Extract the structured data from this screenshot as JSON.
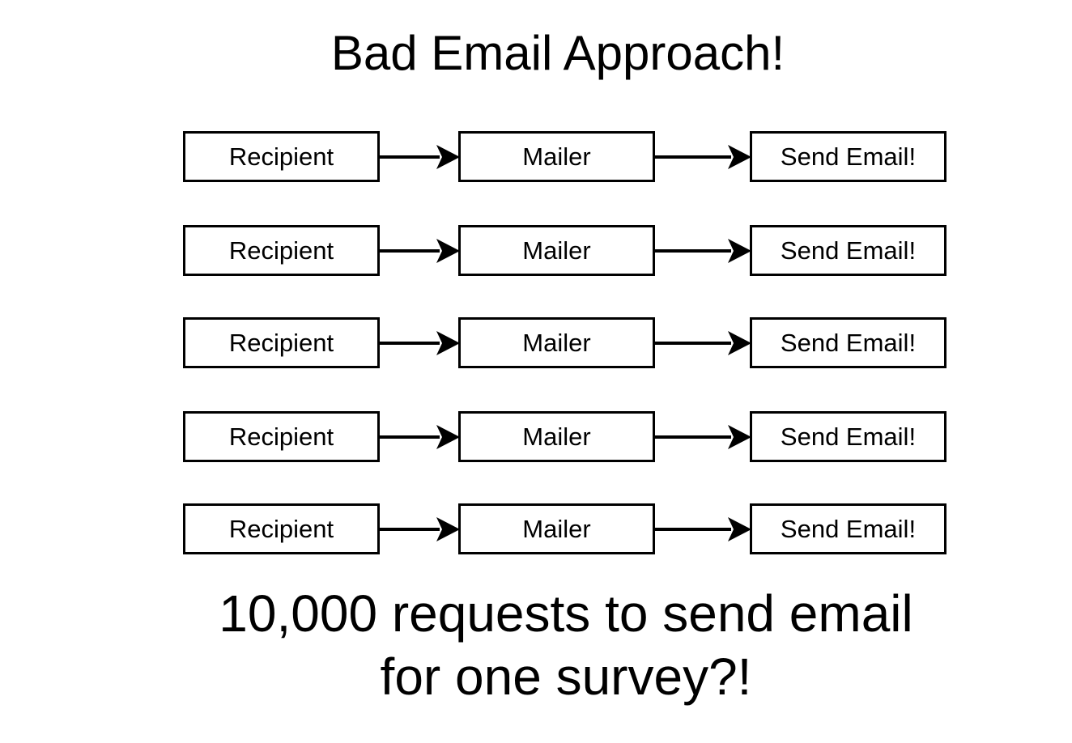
{
  "title": "Bad Email Approach!",
  "rows": [
    {
      "source": "Recipient",
      "middle": "Mailer",
      "target": "Send Email!"
    },
    {
      "source": "Recipient",
      "middle": "Mailer",
      "target": "Send Email!"
    },
    {
      "source": "Recipient",
      "middle": "Mailer",
      "target": "Send Email!"
    },
    {
      "source": "Recipient",
      "middle": "Mailer",
      "target": "Send Email!"
    },
    {
      "source": "Recipient",
      "middle": "Mailer",
      "target": "Send Email!"
    }
  ],
  "footer": {
    "line1": "10,000 requests to send email",
    "line2": "for one survey?!"
  },
  "colors": {
    "stroke": "#000000",
    "background": "#ffffff"
  }
}
